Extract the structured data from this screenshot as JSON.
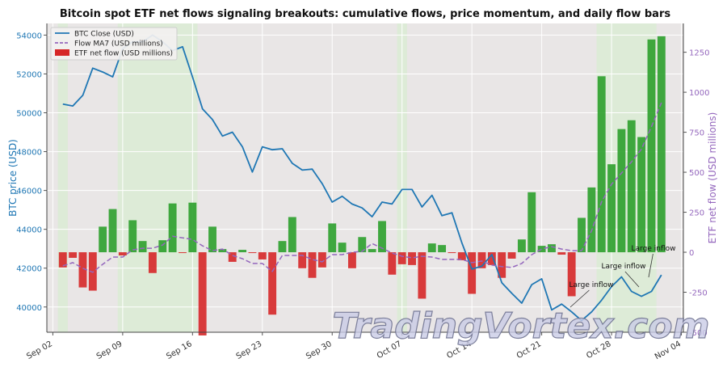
{
  "chart_data": {
    "type": "bar",
    "title": "Bitcoin spot ETF net flows signaling breakouts: cumulative flows, price momentum, and daily flow bars",
    "xlabel": "",
    "ylabel": "BTC price (USD)",
    "ylabel_right": "ETF net flow (USD millions)",
    "ylim": [
      38700,
      54600
    ],
    "ylim_right": [
      -500,
      1430
    ],
    "grid": true,
    "legend_position": "top-left",
    "x_tick_labels": [
      "Sep 02",
      "Sep 09",
      "Sep 16",
      "Sep 23",
      "Sep 30",
      "Oct 07",
      "Oct 14",
      "Oct 21",
      "Oct 28",
      "Nov 04"
    ],
    "y_tick_labels": [
      "40000",
      "42000",
      "44000",
      "46000",
      "48000",
      "50000",
      "52000",
      "54000"
    ],
    "y_right_tick_labels": [
      "-500",
      "-250",
      "0",
      "250",
      "500",
      "750",
      "1000",
      "1250"
    ],
    "dates": [
      "2024-09-03",
      "2024-09-04",
      "2024-09-05",
      "2024-09-06",
      "2024-09-07",
      "2024-09-08",
      "2024-09-09",
      "2024-09-10",
      "2024-09-11",
      "2024-09-12",
      "2024-09-13",
      "2024-09-14",
      "2024-09-15",
      "2024-09-16",
      "2024-09-17",
      "2024-09-18",
      "2024-09-19",
      "2024-09-20",
      "2024-09-21",
      "2024-09-22",
      "2024-09-23",
      "2024-09-24",
      "2024-09-25",
      "2024-09-26",
      "2024-09-27",
      "2024-09-28",
      "2024-09-29",
      "2024-09-30",
      "2024-10-01",
      "2024-10-02",
      "2024-10-03",
      "2024-10-04",
      "2024-10-05",
      "2024-10-06",
      "2024-10-07",
      "2024-10-08",
      "2024-10-09",
      "2024-10-10",
      "2024-10-11",
      "2024-10-12",
      "2024-10-13",
      "2024-10-14",
      "2024-10-15",
      "2024-10-16",
      "2024-10-17",
      "2024-10-18",
      "2024-10-19",
      "2024-10-20",
      "2024-10-21",
      "2024-10-22",
      "2024-10-23",
      "2024-10-24",
      "2024-10-25",
      "2024-10-26",
      "2024-10-27",
      "2024-10-28",
      "2024-10-29",
      "2024-10-30",
      "2024-10-31",
      "2024-11-01",
      "2024-11-02"
    ],
    "series": [
      {
        "name": "BTC Close (USD)",
        "axis": "left",
        "kind": "line",
        "color": "#1f77b4",
        "values": [
          50450,
          50350,
          50900,
          52300,
          52100,
          51850,
          53300,
          53650,
          53650,
          54000,
          53650,
          53200,
          53400,
          51850,
          50200,
          49650,
          48800,
          49000,
          48250,
          46950,
          48250,
          48100,
          48150,
          47400,
          47050,
          47100,
          46350,
          45400,
          45700,
          45300,
          45100,
          44650,
          45400,
          45300,
          46050,
          46050,
          45150,
          45750,
          44700,
          44850,
          43300,
          41950,
          42100,
          42700,
          41250,
          40700,
          40200,
          41150,
          41450,
          39850,
          40150,
          39750,
          39300,
          39750,
          40350,
          41050,
          41550,
          40800,
          40550,
          40800,
          41650
        ]
      },
      {
        "name": "Flow MA7 (USD millions)",
        "axis": "right",
        "kind": "line",
        "color": "#9467bd",
        "values": [
          -85,
          -65,
          -100,
          -125,
          -75,
          -30,
          -30,
          15,
          25,
          25,
          45,
          100,
          90,
          80,
          40,
          10,
          20,
          -20,
          -40,
          -70,
          -70,
          -120,
          -20,
          -20,
          -20,
          -45,
          -60,
          -15,
          -15,
          0,
          5,
          55,
          25,
          -5,
          -25,
          -35,
          -25,
          -30,
          -45,
          -45,
          -45,
          -65,
          -55,
          -80,
          -90,
          -95,
          -70,
          -15,
          20,
          35,
          20,
          10,
          10,
          135,
          315,
          425,
          495,
          565,
          645,
          785,
          935
        ]
      },
      {
        "name": "ETF net flow (USD millions)",
        "axis": "right",
        "kind": "bar",
        "color_positive": "#2ca02c",
        "color_negative": "#d62728",
        "values": [
          -95,
          -35,
          -220,
          -240,
          160,
          270,
          -20,
          200,
          70,
          -130,
          75,
          305,
          -5,
          310,
          -520,
          160,
          20,
          -60,
          15,
          -5,
          -45,
          -390,
          70,
          220,
          -100,
          -160,
          -95,
          180,
          60,
          -100,
          95,
          20,
          195,
          -140,
          -75,
          -80,
          -290,
          55,
          45,
          -5,
          -50,
          -260,
          -100,
          -80,
          -160,
          -40,
          80,
          375,
          40,
          50,
          -15,
          -275,
          215,
          405,
          1100,
          550,
          770,
          825,
          720,
          1330,
          1350
        ]
      }
    ],
    "shaded_regions": [
      [
        "2024-09-03",
        "2024-09-03"
      ],
      [
        "2024-09-09",
        "2024-09-16"
      ],
      [
        "2024-10-07",
        "2024-10-07"
      ],
      [
        "2024-10-27",
        "2024-11-01"
      ]
    ],
    "annotations": [
      "Large inflow",
      "Large inflow",
      "Large inflow"
    ],
    "watermark": "TradingVortex.com"
  }
}
